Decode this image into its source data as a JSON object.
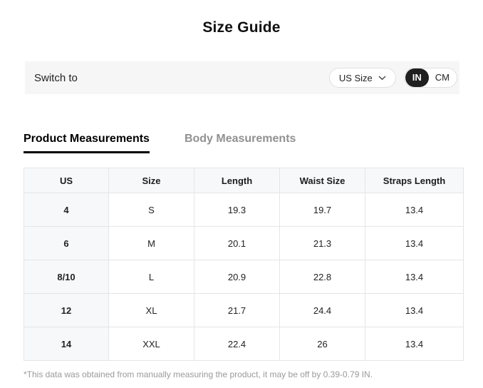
{
  "title": "Size Guide",
  "switch_bar": {
    "label": "Switch to",
    "size_select": {
      "value": "US Size",
      "icon": "chevron-down-icon"
    },
    "unit_toggle": {
      "options": [
        "IN",
        "CM"
      ],
      "selected": "IN"
    }
  },
  "tabs": [
    {
      "label": "Product Measurements",
      "active": true
    },
    {
      "label": "Body Measurements",
      "active": false
    }
  ],
  "table": {
    "headers": [
      "US",
      "Size",
      "Length",
      "Waist Size",
      "Straps Length"
    ],
    "rows": [
      [
        "4",
        "S",
        "19.3",
        "19.7",
        "13.4"
      ],
      [
        "6",
        "M",
        "20.1",
        "21.3",
        "13.4"
      ],
      [
        "8/10",
        "L",
        "20.9",
        "22.8",
        "13.4"
      ],
      [
        "12",
        "XL",
        "21.7",
        "24.4",
        "13.4"
      ],
      [
        "14",
        "XXL",
        "22.4",
        "26",
        "13.4"
      ]
    ]
  },
  "footnote": "*This data was obtained from manually measuring the product, it may be off by 0.39-0.79 IN.",
  "colors": {
    "accent_dark": "#1f1f1f",
    "header_bg": "#f7f8fa",
    "bar_bg": "#f6f6f7",
    "border": "#e5e5e5",
    "inactive_tab": "#919191",
    "muted_text": "#9a9a9a"
  }
}
